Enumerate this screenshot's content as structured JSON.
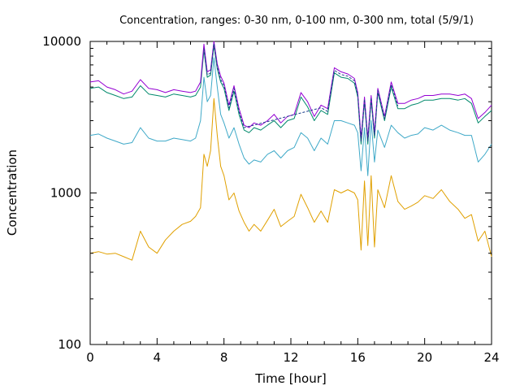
{
  "chart_data": {
    "type": "line",
    "title": "Concentration, ranges: 0-30 nm, 0-100 nm, 0-300 nm, total (5/9/1)",
    "xlabel": "Time [hour]",
    "ylabel": "Concentration",
    "xlim": [
      0,
      24
    ],
    "ylim": [
      100,
      10000
    ],
    "yscale": "log",
    "grid": false,
    "legend": "none",
    "xticks": [
      0,
      4,
      8,
      12,
      16,
      20,
      24
    ],
    "xtick_labels": [
      "0",
      "4",
      "8",
      "12",
      "16",
      "20",
      "24"
    ],
    "yticks": [
      100,
      1000,
      10000
    ],
    "ytick_labels": [
      "100",
      "1000",
      "10000"
    ],
    "series": [
      {
        "color": "#e0a000",
        "x": [
          0,
          0.5,
          1,
          1.5,
          2,
          2.5,
          3,
          3.5,
          4,
          4.5,
          5,
          5.5,
          6,
          6.3,
          6.6,
          6.8,
          7,
          7.2,
          7.4,
          7.6,
          7.8,
          8,
          8.3,
          8.6,
          8.9,
          9.2,
          9.5,
          9.8,
          10.2,
          10.6,
          11,
          11.4,
          11.8,
          12.2,
          12.6,
          13,
          13.4,
          13.8,
          14.2,
          14.6,
          15,
          15.4,
          15.8,
          16,
          16.2,
          16.4,
          16.6,
          16.8,
          17,
          17.2,
          17.6,
          18,
          18.4,
          18.8,
          19.2,
          19.6,
          20,
          20.5,
          21,
          21.5,
          22,
          22.4,
          22.8,
          23.2,
          23.6,
          24
        ],
        "y": [
          400,
          410,
          395,
          400,
          380,
          360,
          560,
          440,
          400,
          490,
          560,
          620,
          650,
          700,
          800,
          1800,
          1500,
          1900,
          4200,
          2400,
          1500,
          1300,
          900,
          1000,
          760,
          640,
          560,
          620,
          560,
          660,
          780,
          600,
          650,
          700,
          980,
          800,
          640,
          760,
          640,
          1050,
          1000,
          1050,
          1000,
          900,
          420,
          1200,
          450,
          1300,
          440,
          1050,
          800,
          1300,
          880,
          780,
          820,
          870,
          960,
          920,
          1050,
          880,
          780,
          680,
          720,
          480,
          560,
          380
        ]
      },
      {
        "color": "#3fa9c8",
        "x": [
          0,
          0.5,
          1,
          1.5,
          2,
          2.5,
          3,
          3.5,
          4,
          4.5,
          5,
          5.5,
          6,
          6.3,
          6.6,
          6.8,
          7,
          7.2,
          7.4,
          7.6,
          7.8,
          8,
          8.3,
          8.6,
          8.9,
          9.2,
          9.5,
          9.8,
          10.2,
          10.6,
          11,
          11.4,
          11.8,
          12.2,
          12.6,
          13,
          13.4,
          13.8,
          14.2,
          14.6,
          15,
          15.4,
          15.8,
          16,
          16.2,
          16.4,
          16.6,
          16.8,
          17,
          17.2,
          17.6,
          18,
          18.4,
          18.8,
          19.2,
          19.6,
          20,
          20.5,
          21,
          21.5,
          22,
          22.4,
          22.8,
          23.2,
          23.6,
          24
        ],
        "y": [
          2400,
          2450,
          2300,
          2200,
          2100,
          2150,
          2700,
          2300,
          2200,
          2200,
          2300,
          2250,
          2200,
          2300,
          3000,
          5800,
          4000,
          4400,
          7800,
          5000,
          3300,
          2900,
          2300,
          2700,
          2100,
          1700,
          1550,
          1650,
          1600,
          1800,
          1900,
          1700,
          1900,
          2000,
          2500,
          2300,
          1900,
          2300,
          2100,
          3000,
          3000,
          2900,
          2800,
          2500,
          1400,
          2700,
          1300,
          3000,
          1600,
          2600,
          2000,
          2800,
          2500,
          2300,
          2400,
          2450,
          2700,
          2600,
          2800,
          2600,
          2500,
          2400,
          2400,
          1600,
          1800,
          2100
        ]
      },
      {
        "color": "#00896b",
        "x": [
          0,
          0.5,
          1,
          1.5,
          2,
          2.5,
          3,
          3.5,
          4,
          4.5,
          5,
          5.5,
          6,
          6.3,
          6.6,
          6.8,
          7,
          7.2,
          7.4,
          7.6,
          7.8,
          8,
          8.3,
          8.6,
          8.9,
          9.2,
          9.5,
          9.8,
          10.2,
          10.6,
          11,
          11.4,
          11.8,
          12.2,
          12.6,
          13,
          13.4,
          13.8,
          14.2,
          14.6,
          15,
          15.4,
          15.8,
          16,
          16.2,
          16.4,
          16.6,
          16.8,
          17,
          17.2,
          17.6,
          18,
          18.4,
          18.8,
          19.2,
          19.6,
          20,
          20.5,
          21,
          21.5,
          22,
          22.4,
          22.8,
          23.2,
          23.6,
          24
        ],
        "y": [
          4900,
          5000,
          4600,
          4400,
          4200,
          4300,
          5100,
          4500,
          4400,
          4300,
          4500,
          4400,
          4300,
          4400,
          5000,
          8800,
          5800,
          6000,
          9400,
          6600,
          5400,
          4900,
          3500,
          4700,
          3300,
          2600,
          2500,
          2700,
          2600,
          2800,
          3000,
          2700,
          3000,
          3100,
          4300,
          3700,
          3000,
          3500,
          3300,
          6200,
          5800,
          5700,
          5300,
          4300,
          2100,
          4000,
          2100,
          4100,
          2300,
          4600,
          3000,
          5000,
          3600,
          3600,
          3800,
          3900,
          4100,
          4100,
          4200,
          4200,
          4100,
          4200,
          3900,
          2900,
          3200,
          3500
        ]
      },
      {
        "color": "#9400d3",
        "x": [
          0,
          0.5,
          1,
          1.5,
          2,
          2.5,
          3,
          3.5,
          4,
          4.5,
          5,
          5.5,
          6,
          6.3,
          6.6,
          6.8,
          7,
          7.2,
          7.4,
          7.6,
          7.8,
          8,
          8.3,
          8.6,
          8.9,
          9.2,
          9.5,
          9.8,
          10.2,
          10.6,
          11,
          11.4,
          11.8,
          12.2,
          12.6,
          13,
          13.4,
          13.8,
          14.2,
          14.6,
          15,
          15.4,
          15.8,
          16,
          16.2,
          16.4,
          16.6,
          16.8,
          17,
          17.2,
          17.6,
          18,
          18.4,
          18.8,
          19.2,
          19.6,
          20,
          20.5,
          21,
          21.5,
          22,
          22.4,
          22.8,
          23.2,
          23.6,
          24
        ],
        "y": [
          5400,
          5500,
          5000,
          4800,
          4500,
          4700,
          5600,
          4900,
          4800,
          4600,
          4800,
          4700,
          4600,
          4700,
          5400,
          9600,
          6300,
          6500,
          10000,
          7100,
          5900,
          5300,
          3800,
          5100,
          3600,
          2800,
          2700,
          2900,
          2800,
          3000,
          3300,
          2900,
          3200,
          3300,
          4600,
          4000,
          3200,
          3800,
          3600,
          6700,
          6300,
          6100,
          5700,
          4600,
          2300,
          4300,
          2300,
          4400,
          2500,
          4900,
          3200,
          5400,
          3900,
          3900,
          4100,
          4200,
          4400,
          4400,
          4500,
          4500,
          4400,
          4500,
          4200,
          3100,
          3400,
          3800
        ]
      },
      {
        "color": "#1a3c8c",
        "dash": "3,2",
        "x": [
          6.8,
          7,
          7.2,
          7.4,
          7.6,
          7.8,
          8,
          8.3,
          8.6,
          8.9,
          9.2,
          13.8,
          14.2,
          14.6,
          15,
          15.4,
          15.8,
          16,
          16.2,
          16.4,
          16.6,
          16.8,
          17,
          17.2,
          17.6,
          18,
          18.4
        ],
        "y": [
          9000,
          6000,
          6200,
          9700,
          6800,
          5600,
          5100,
          3650,
          4900,
          3450,
          2700,
          3650,
          3450,
          6450,
          6050,
          5900,
          5500,
          4450,
          2200,
          4150,
          2200,
          4250,
          2400,
          4750,
          3100,
          5200,
          3750
        ]
      }
    ]
  }
}
